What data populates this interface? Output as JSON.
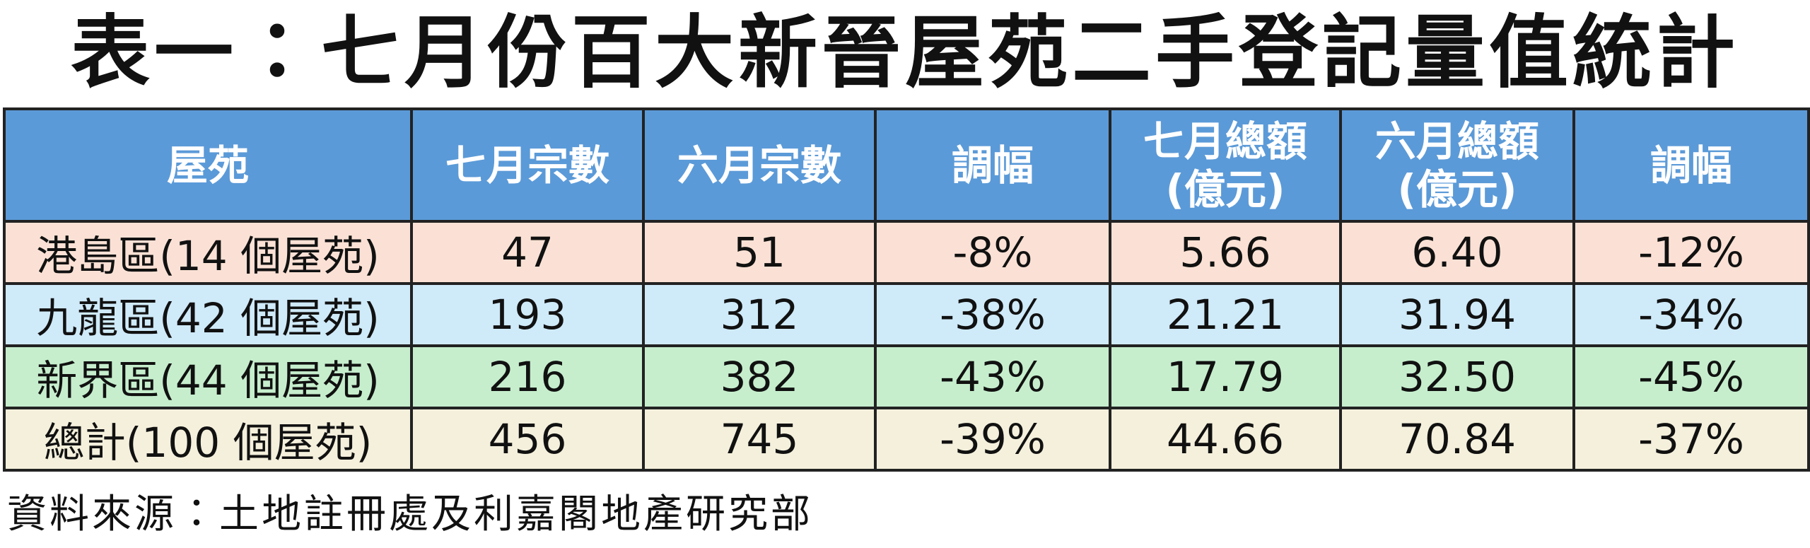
{
  "header": {
    "title": "表一：七月份百大新晉屋苑二手登記量值統計"
  },
  "table": {
    "columns": [
      "屋苑",
      "七月宗數",
      "六月宗數",
      "調幅",
      "七月總額\n(億元)",
      "六月總額\n(億元)",
      "調幅"
    ],
    "rows": [
      [
        "港島區(14 個屋苑)",
        "47",
        "51",
        "-8%",
        "5.66",
        "6.40",
        "-12%"
      ],
      [
        "九龍區(42 個屋苑)",
        "193",
        "312",
        "-38%",
        "21.21",
        "31.94",
        "-34%"
      ],
      [
        "新界區(44 個屋苑)",
        "216",
        "382",
        "-43%",
        "17.79",
        "32.50",
        "-45%"
      ],
      [
        "總計(100 個屋苑)",
        "456",
        "745",
        "-39%",
        "44.66",
        "70.84",
        "-37%"
      ]
    ]
  },
  "footer": {
    "source": "資料來源：土地註冊處及利嘉閣地產研究部"
  }
}
